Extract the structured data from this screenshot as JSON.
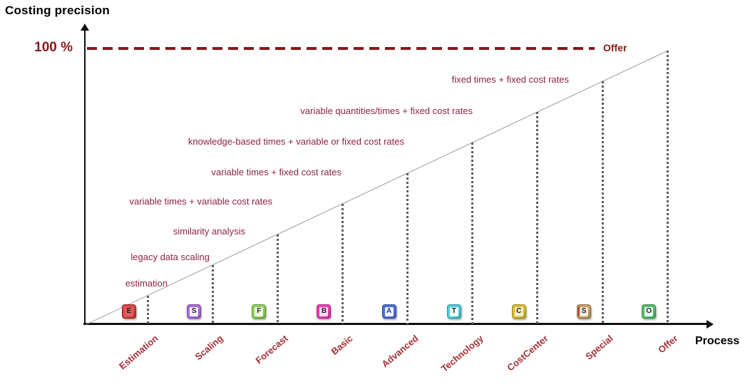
{
  "y_axis": {
    "title": "Costing precision",
    "max_tick": "100 %"
  },
  "x_axis": {
    "title": "Process"
  },
  "ceiling": {
    "label": "Offer",
    "level": "100 %",
    "color": "#8B1818"
  },
  "colors": {
    "method_text": "#8E2145",
    "process_text": "#A53038",
    "axis": "#111111",
    "diagonal": "#9a9a9a",
    "dotted_line": "#5d5d5d"
  },
  "steps": [
    {
      "process": "Estimation",
      "letter": "E",
      "method": "estimation",
      "icon": {
        "base": "#D94848",
        "border": "#951C1C",
        "inner": "#E26060",
        "letter_color": "#1a1a1a"
      }
    },
    {
      "process": "Scaling",
      "letter": "S",
      "method": "legacy data scaling",
      "icon": {
        "base": "#AE6CD6",
        "border": "#7C44A8",
        "inner": "#F6EFFA",
        "letter_color": "#222222"
      }
    },
    {
      "process": "Forecast",
      "letter": "F",
      "method": "similarity analysis",
      "icon": {
        "base": "#93CE60",
        "border": "#5A9630",
        "inner": "#F2FAE9",
        "letter_color": "#222222"
      }
    },
    {
      "process": "Basic",
      "letter": "B",
      "method": "variable times + variable cost rates",
      "icon": {
        "base": "#EC3FB1",
        "border": "#B01680",
        "inner": "#F9D9F0",
        "letter_color": "#222222"
      }
    },
    {
      "process": "Advanced",
      "letter": "A",
      "method": "variable times + fixed cost rates",
      "icon": {
        "base": "#4C72D2",
        "border": "#2A4B9B",
        "inner": "#EDF2FC",
        "letter_color": "#1a3a8a"
      }
    },
    {
      "process": "Technology",
      "letter": "T",
      "method": "knowledge-based times + variable or fixed cost rates",
      "icon": {
        "base": "#54CBD9",
        "border": "#2497A6",
        "inner": "#EDFBFC",
        "letter_color": "#222222"
      }
    },
    {
      "process": "CostCenter",
      "letter": "C",
      "method": "variable quantities/times + fixed cost rates",
      "icon": {
        "base": "#D8BE35",
        "border": "#A08A16",
        "inner": "#F6EFC0",
        "letter_color": "#222222"
      }
    },
    {
      "process": "Special",
      "letter": "S",
      "method": "fixed times + fixed cost rates",
      "icon": {
        "base": "#C49E6C",
        "border": "#8E6C3E",
        "inner": "#F4ECDC",
        "letter_color": "#222222",
        "stripe": "#B03030"
      }
    },
    {
      "process": "Offer",
      "letter": "O",
      "method": null,
      "icon": {
        "base": "#5ABB6E",
        "border": "#2F8C44",
        "inner": "#ECF8EF",
        "letter_color": "#222222"
      }
    }
  ]
}
